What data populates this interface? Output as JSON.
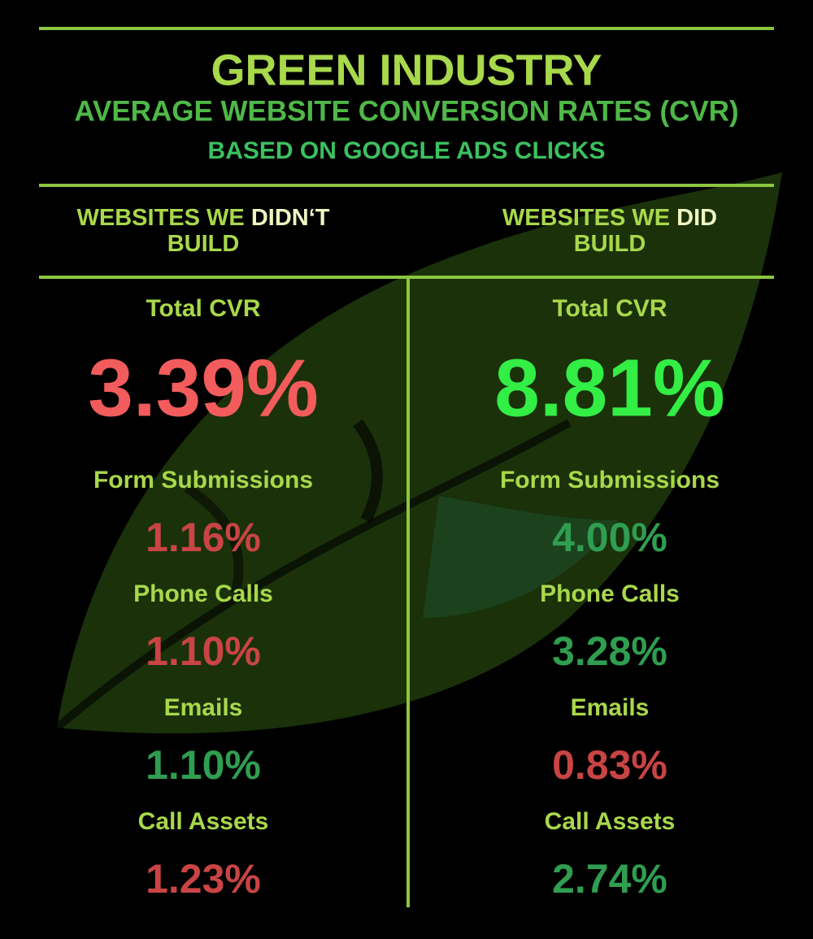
{
  "header": {
    "title": "GREEN INDUSTRY",
    "subtitle": "AVERAGE WEBSITE CONVERSION RATES (CVR)",
    "note": "BASED ON GOOGLE ADS CLICKS"
  },
  "columns": [
    {
      "heading": [
        "WEBSITES WE",
        "DIDN‘T",
        "BUILD"
      ],
      "total": {
        "label": "Total CVR",
        "value": "3.39%",
        "color": "#f25c5c"
      },
      "metrics": [
        {
          "label": "Form Submissions",
          "value": "1.16%",
          "color": "#c94444"
        },
        {
          "label": "Phone Calls",
          "value": "1.10%",
          "color": "#c94444"
        },
        {
          "label": "Emails",
          "value": "1.10%",
          "color": "#2f9e50"
        },
        {
          "label": "Call Assets",
          "value": "1.23%",
          "color": "#c94444"
        }
      ]
    },
    {
      "heading": [
        "WEBSITES WE",
        "DID",
        "BUILD"
      ],
      "total": {
        "label": "Total CVR",
        "value": "8.81%",
        "color": "#33ee44"
      },
      "metrics": [
        {
          "label": "Form Submissions",
          "value": "4.00%",
          "color": "#2f9e50"
        },
        {
          "label": "Phone Calls",
          "value": "3.28%",
          "color": "#2f9e50"
        },
        {
          "label": "Emails",
          "value": "0.83%",
          "color": "#c94444"
        },
        {
          "label": "Call Assets",
          "value": "2.74%",
          "color": "#2f9e50"
        }
      ]
    }
  ]
}
